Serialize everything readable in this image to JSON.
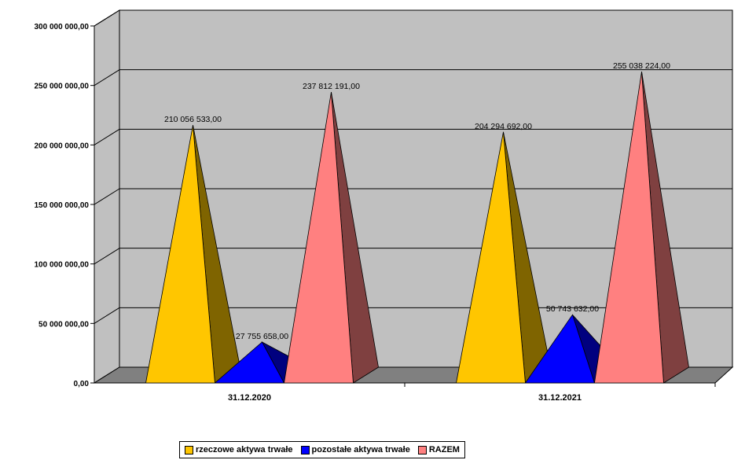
{
  "chart_data": {
    "type": "bar",
    "bar_shape": "pyramid-3d",
    "categories": [
      "31.12.2020",
      "31.12.2021"
    ],
    "series": [
      {
        "name": "rzeczowe aktywa trwałe",
        "color": "#FFC600",
        "side_color": "#7F6400",
        "values": [
          210056533.0,
          204294692.0
        ],
        "labels": [
          "210 056 533,00",
          "204 294 692,00"
        ]
      },
      {
        "name": "pozostałe aktywa trwałe",
        "color": "#0000FF",
        "side_color": "#00007F",
        "values": [
          27755658.0,
          50743632.0
        ],
        "labels": [
          "27 755 658,00",
          "50 743 632,00"
        ]
      },
      {
        "name": "RAZEM",
        "color": "#FF8080",
        "side_color": "#7F4040",
        "values": [
          237812191.0,
          255038224.0
        ],
        "labels": [
          "237 812 191,00",
          "255 038 224,00"
        ]
      }
    ],
    "ylim": [
      0,
      300000000
    ],
    "yticks": [
      0,
      50000000,
      100000000,
      150000000,
      200000000,
      250000000,
      300000000
    ],
    "ytick_labels": [
      "0,00",
      "50 000 000,00",
      "100 000 000,00",
      "150 000 000,00",
      "200 000 000,00",
      "250 000 000,00",
      "300 000 000,00"
    ],
    "title": "",
    "xlabel": "",
    "ylabel": "",
    "grid": true,
    "wall_color": "#C0C0C0",
    "floor_color": "#808080",
    "legend_position": "bottom"
  }
}
